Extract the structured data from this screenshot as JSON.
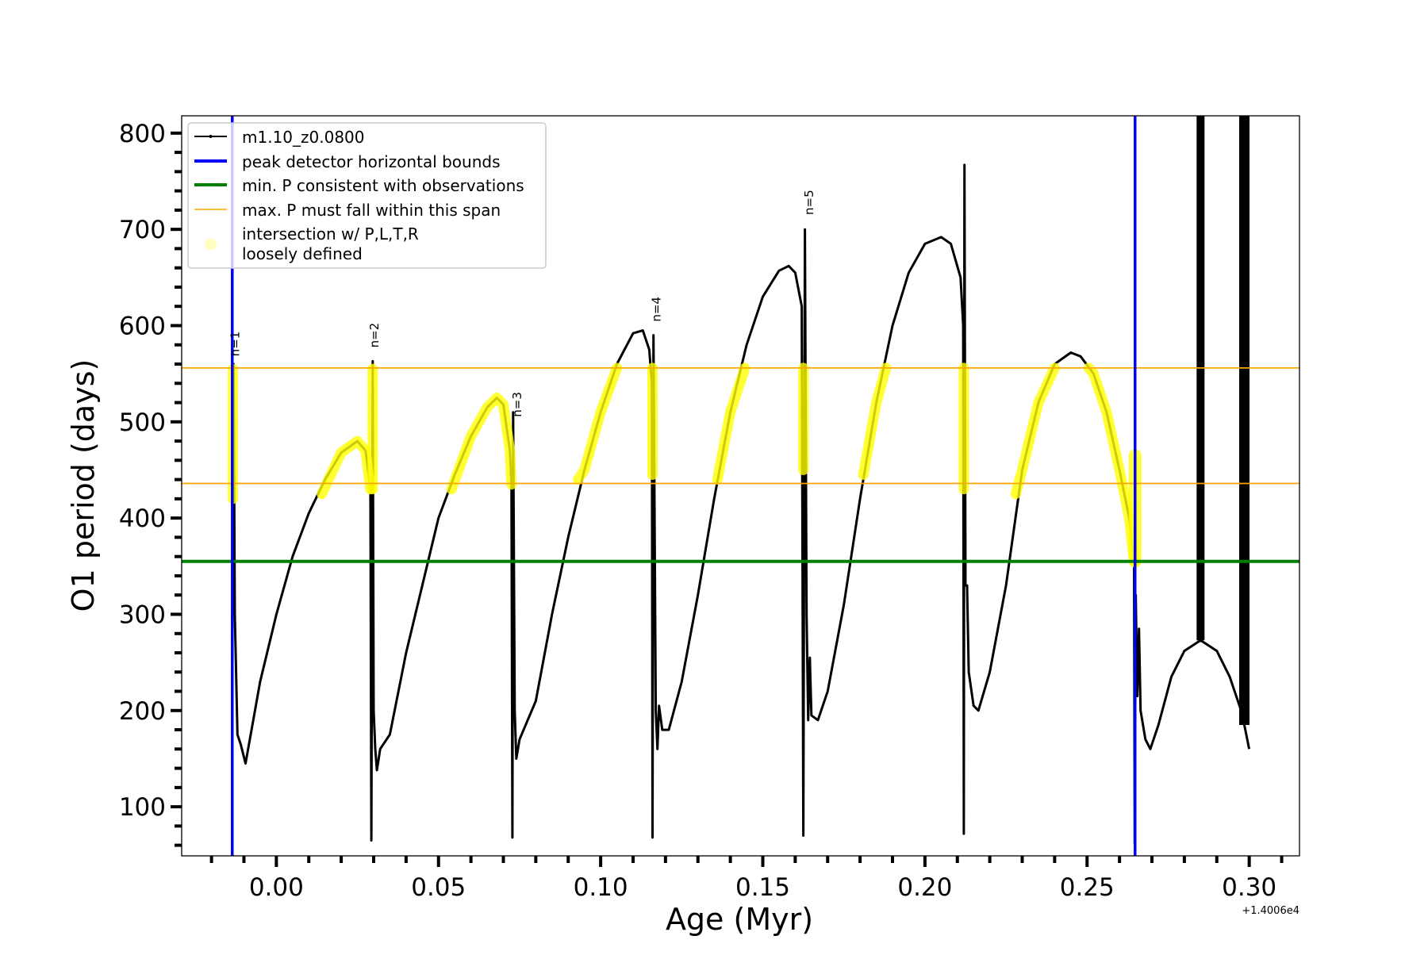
{
  "chart_data": {
    "type": "line",
    "xlabel": "Age (Myr)",
    "ylabel": "O1 period (days)",
    "x_offset_label": "+1.4006e4",
    "xlim": [
      -0.0292,
      0.3155
    ],
    "ylim": [
      49,
      818
    ],
    "xticks": [
      0.0,
      0.05,
      0.1,
      0.15,
      0.2,
      0.25,
      0.3
    ],
    "xtick_labels": [
      "0.00",
      "0.05",
      "0.10",
      "0.15",
      "0.20",
      "0.25",
      "0.30"
    ],
    "yticks": [
      100,
      200,
      300,
      400,
      500,
      600,
      700,
      800
    ],
    "ytick_labels": [
      "100",
      "200",
      "300",
      "400",
      "500",
      "600",
      "700",
      "800"
    ],
    "x_minor_step": 0.01,
    "y_minor_step": 20,
    "grid": false,
    "legend_placement": "top-left",
    "legend": [
      {
        "label": "m1.10_z0.0800",
        "color": "#000000",
        "style": "line-marker"
      },
      {
        "label": "peak detector horizontal bounds",
        "color": "#0000ff",
        "style": "thick-line"
      },
      {
        "label": "min. P consistent with observations",
        "color": "#008000",
        "style": "thick-line"
      },
      {
        "label": "max. P must fall within this span",
        "color": "#ffa500",
        "style": "thin-line"
      },
      {
        "label": "intersection w/ P,L,T,R",
        "label2": "loosely defined",
        "color": "#ffffc0",
        "style": "dot"
      }
    ],
    "vlines_blue": [
      -0.0136,
      0.2648
    ],
    "hline_green": 355,
    "hlines_orange": [
      556,
      436
    ],
    "colors": {
      "curve": "#000000",
      "blue": "#0000ff",
      "green": "#008000",
      "orange": "#ffa500",
      "highlight": "#ffff00"
    },
    "series": [
      {
        "name": "m1.10_z0.0800",
        "points": [
          [
            -0.0136,
            340
          ],
          [
            -0.0132,
            560
          ],
          [
            -0.0128,
            300
          ],
          [
            -0.012,
            175
          ],
          [
            -0.011,
            165
          ],
          [
            -0.0095,
            145
          ],
          [
            -0.005,
            230
          ],
          [
            0.0,
            300
          ],
          [
            0.005,
            360
          ],
          [
            0.01,
            405
          ],
          [
            0.015,
            440
          ],
          [
            0.02,
            468
          ],
          [
            0.025,
            480
          ],
          [
            0.0275,
            470
          ],
          [
            0.029,
            430
          ],
          [
            0.0293,
            65
          ],
          [
            0.0297,
            563
          ],
          [
            0.03,
            200
          ],
          [
            0.0305,
            160
          ],
          [
            0.031,
            138
          ],
          [
            0.032,
            160
          ],
          [
            0.035,
            175
          ],
          [
            0.04,
            260
          ],
          [
            0.045,
            330
          ],
          [
            0.05,
            400
          ],
          [
            0.055,
            445
          ],
          [
            0.06,
            485
          ],
          [
            0.065,
            515
          ],
          [
            0.068,
            525
          ],
          [
            0.07,
            518
          ],
          [
            0.072,
            470
          ],
          [
            0.0725,
            435
          ],
          [
            0.0728,
            68
          ],
          [
            0.073,
            510
          ],
          [
            0.0735,
            200
          ],
          [
            0.074,
            150
          ],
          [
            0.075,
            170
          ],
          [
            0.08,
            210
          ],
          [
            0.085,
            300
          ],
          [
            0.09,
            380
          ],
          [
            0.095,
            450
          ],
          [
            0.1,
            510
          ],
          [
            0.105,
            560
          ],
          [
            0.11,
            592
          ],
          [
            0.113,
            595
          ],
          [
            0.115,
            575
          ],
          [
            0.1158,
            540
          ],
          [
            0.116,
            68
          ],
          [
            0.1163,
            590
          ],
          [
            0.117,
            200
          ],
          [
            0.1175,
            160
          ],
          [
            0.118,
            205
          ],
          [
            0.119,
            180
          ],
          [
            0.121,
            180
          ],
          [
            0.125,
            230
          ],
          [
            0.13,
            320
          ],
          [
            0.135,
            420
          ],
          [
            0.14,
            510
          ],
          [
            0.145,
            580
          ],
          [
            0.15,
            630
          ],
          [
            0.155,
            657
          ],
          [
            0.158,
            662
          ],
          [
            0.16,
            655
          ],
          [
            0.162,
            620
          ],
          [
            0.1625,
            70
          ],
          [
            0.163,
            700
          ],
          [
            0.1635,
            300
          ],
          [
            0.164,
            190
          ],
          [
            0.1645,
            255
          ],
          [
            0.165,
            195
          ],
          [
            0.167,
            190
          ],
          [
            0.17,
            220
          ],
          [
            0.175,
            310
          ],
          [
            0.18,
            420
          ],
          [
            0.185,
            520
          ],
          [
            0.19,
            600
          ],
          [
            0.195,
            655
          ],
          [
            0.2,
            685
          ],
          [
            0.205,
            692
          ],
          [
            0.208,
            685
          ],
          [
            0.211,
            650
          ],
          [
            0.2118,
            600
          ],
          [
            0.212,
            72
          ],
          [
            0.2122,
            767
          ],
          [
            0.2125,
            330
          ],
          [
            0.213,
            330
          ],
          [
            0.2135,
            240
          ],
          [
            0.215,
            205
          ],
          [
            0.2165,
            200
          ],
          [
            0.22,
            240
          ],
          [
            0.225,
            330
          ],
          [
            0.23,
            450
          ],
          [
            0.235,
            520
          ],
          [
            0.24,
            560
          ],
          [
            0.245,
            572
          ],
          [
            0.248,
            568
          ],
          [
            0.252,
            550
          ],
          [
            0.256,
            510
          ],
          [
            0.26,
            450
          ],
          [
            0.263,
            400
          ],
          [
            0.2645,
            355
          ],
          [
            0.2647,
            62
          ],
          [
            0.265,
            320
          ],
          [
            0.2655,
            215
          ],
          [
            0.266,
            285
          ],
          [
            0.2665,
            200
          ],
          [
            0.268,
            170
          ],
          [
            0.2695,
            160
          ],
          [
            0.272,
            185
          ],
          [
            0.276,
            235
          ],
          [
            0.28,
            262
          ],
          [
            0.285,
            273
          ],
          [
            0.29,
            262
          ],
          [
            0.294,
            235
          ],
          [
            0.2975,
            200
          ],
          [
            0.2985,
            185
          ],
          [
            0.3,
            160
          ]
        ]
      }
    ],
    "dense_bars": [
      {
        "x": 0.285,
        "y_from": 273,
        "y_to": 818
      },
      {
        "x": 0.2985,
        "y_from": 185,
        "y_to": 818
      }
    ],
    "highlight_segments": [
      [
        [
          -0.0134,
          420
        ],
        [
          -0.0134,
          555
        ]
      ],
      [
        [
          0.014,
          425
        ],
        [
          0.02,
          468
        ],
        [
          0.025,
          480
        ],
        [
          0.0275,
          470
        ],
        [
          0.029,
          430
        ]
      ],
      [
        [
          0.0297,
          430
        ],
        [
          0.0297,
          555
        ]
      ],
      [
        [
          0.054,
          430
        ],
        [
          0.06,
          485
        ],
        [
          0.065,
          515
        ],
        [
          0.068,
          525
        ],
        [
          0.07,
          518
        ],
        [
          0.072,
          470
        ],
        [
          0.0725,
          435
        ]
      ],
      [
        [
          0.093,
          440
        ],
        [
          0.095,
          450
        ],
        [
          0.1,
          510
        ],
        [
          0.105,
          556
        ]
      ],
      [
        [
          0.116,
          445
        ],
        [
          0.116,
          556
        ]
      ],
      [
        [
          0.136,
          440
        ],
        [
          0.14,
          510
        ],
        [
          0.1445,
          556
        ]
      ],
      [
        [
          0.1625,
          450
        ],
        [
          0.1625,
          556
        ]
      ],
      [
        [
          0.181,
          445
        ],
        [
          0.185,
          520
        ],
        [
          0.188,
          556
        ]
      ],
      [
        [
          0.212,
          430
        ],
        [
          0.212,
          556
        ]
      ],
      [
        [
          0.228,
          425
        ],
        [
          0.23,
          450
        ],
        [
          0.235,
          520
        ],
        [
          0.24,
          556
        ]
      ],
      [
        [
          0.2505,
          556
        ],
        [
          0.252,
          550
        ],
        [
          0.256,
          510
        ],
        [
          0.26,
          450
        ],
        [
          0.263,
          400
        ],
        [
          0.2645,
          355
        ]
      ],
      [
        [
          0.2648,
          355
        ],
        [
          0.2648,
          465
        ]
      ]
    ],
    "annotations": [
      {
        "text": "n=1",
        "x": -0.0115,
        "y": 568
      },
      {
        "text": "n=2",
        "x": 0.0315,
        "y": 577
      },
      {
        "text": "n=3",
        "x": 0.0755,
        "y": 505
      },
      {
        "text": "n=4",
        "x": 0.1185,
        "y": 604
      },
      {
        "text": "n=5",
        "x": 0.1655,
        "y": 715
      }
    ]
  }
}
